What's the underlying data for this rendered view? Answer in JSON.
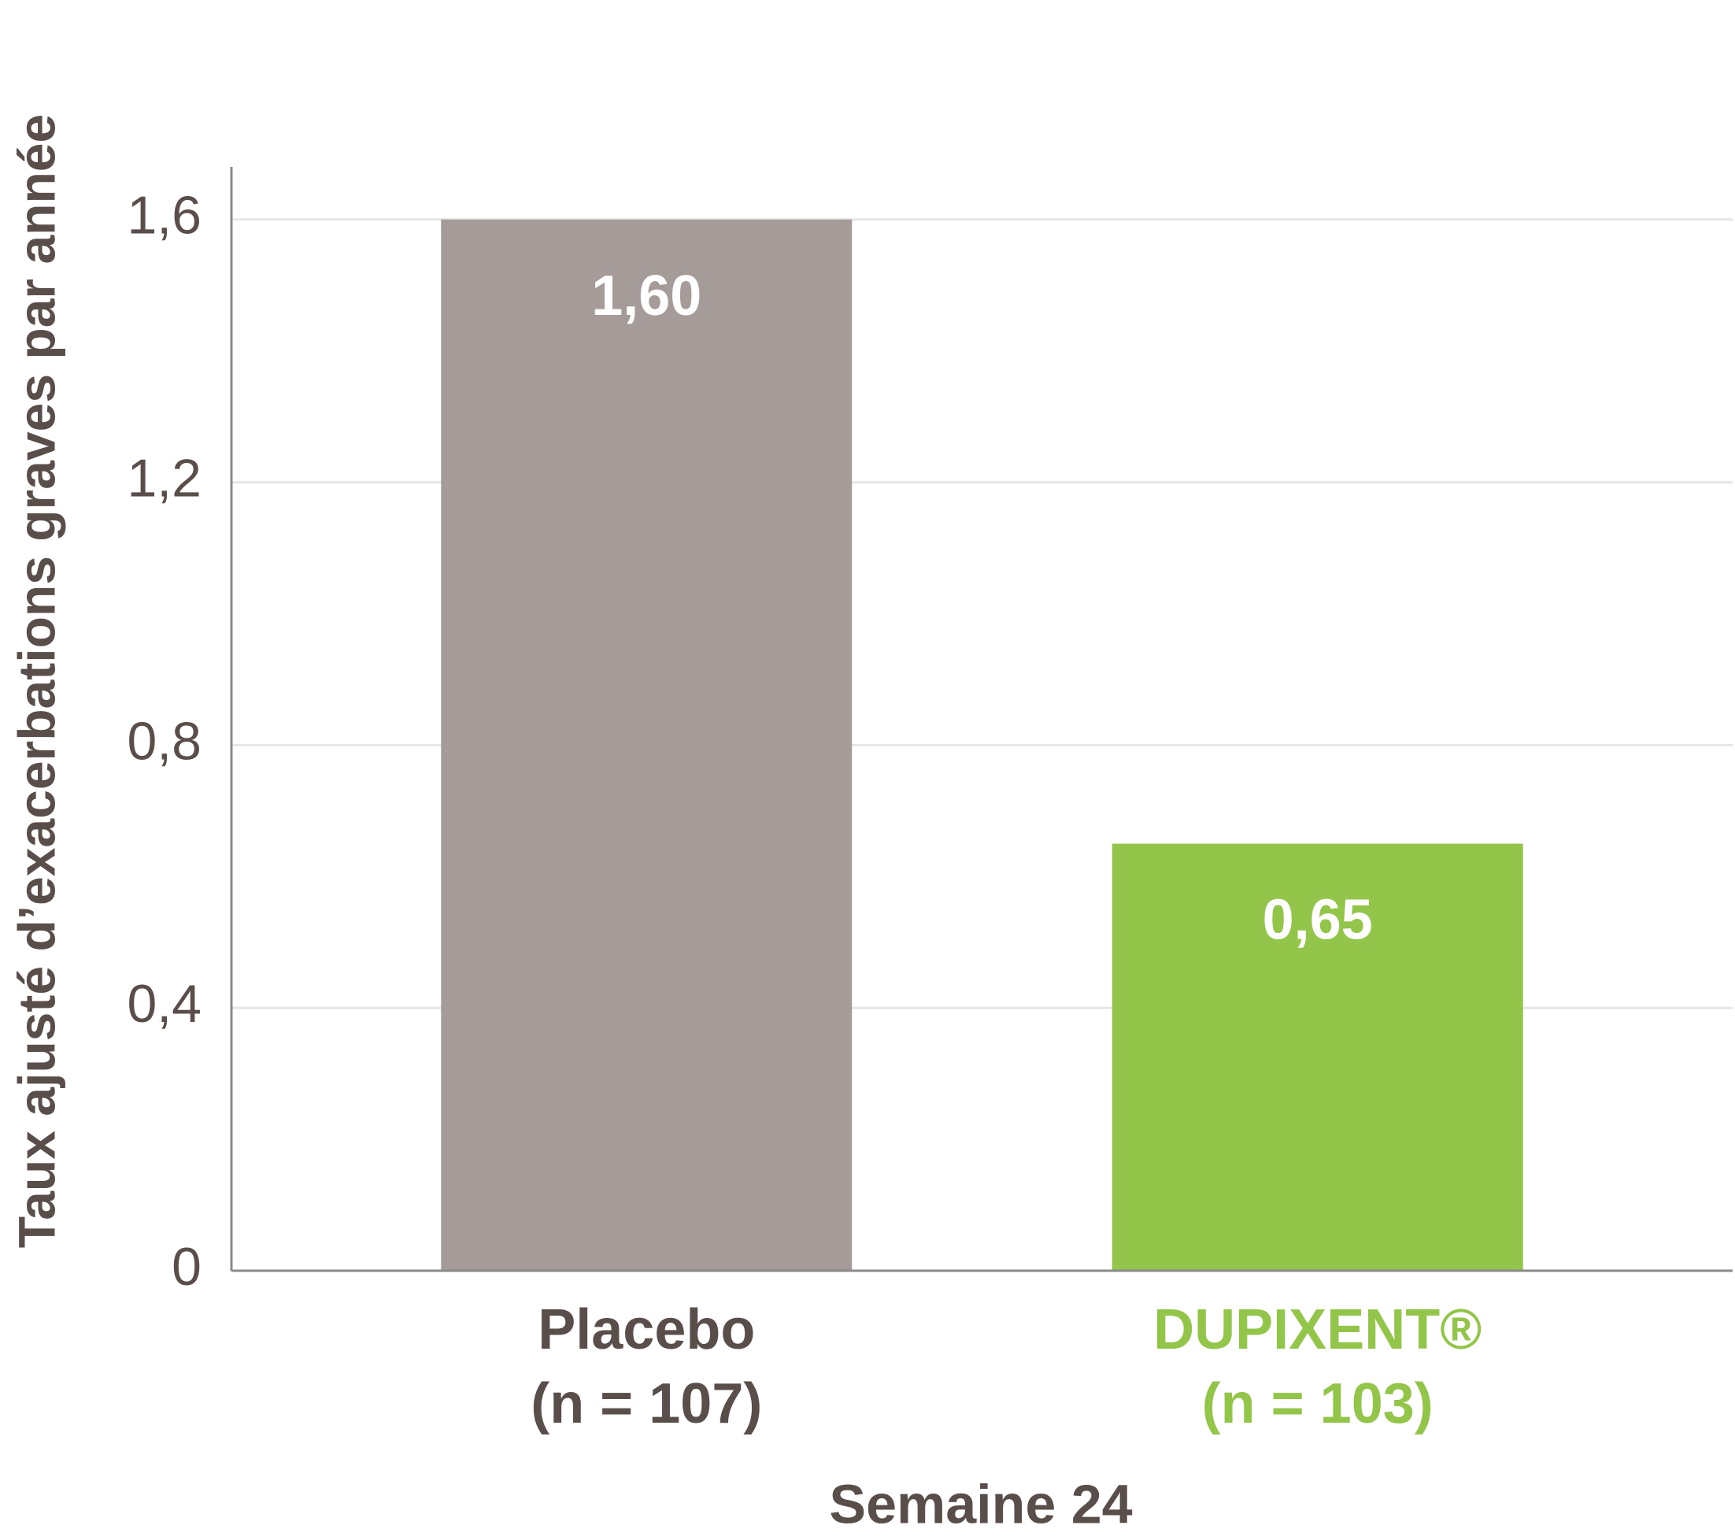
{
  "chart_data": {
    "type": "bar",
    "y_label": "Taux ajusté d’exacerbations graves par année",
    "x_label": "Semaine 24",
    "categories": [
      "Placebo",
      "DUPIXENT®"
    ],
    "category_sublabels": [
      "(n = 107)",
      "(n = 103)"
    ],
    "label_colors": [
      "#5a4e4b",
      "#93c54b"
    ],
    "colors": [
      "#a59b98",
      "#93c54b"
    ],
    "values": [
      1.6,
      0.65
    ],
    "value_labels": [
      "1,60",
      "0,65"
    ],
    "ylim": [
      0,
      1.68
    ],
    "yticks": [
      0,
      {
        "value": 0.4,
        "label": "0,4"
      },
      {
        "value": 0.8,
        "label": "0,8"
      },
      {
        "value": 1.2,
        "label": "1,2"
      },
      {
        "value": 1.6,
        "label": "1,6"
      }
    ],
    "grid": true
  }
}
